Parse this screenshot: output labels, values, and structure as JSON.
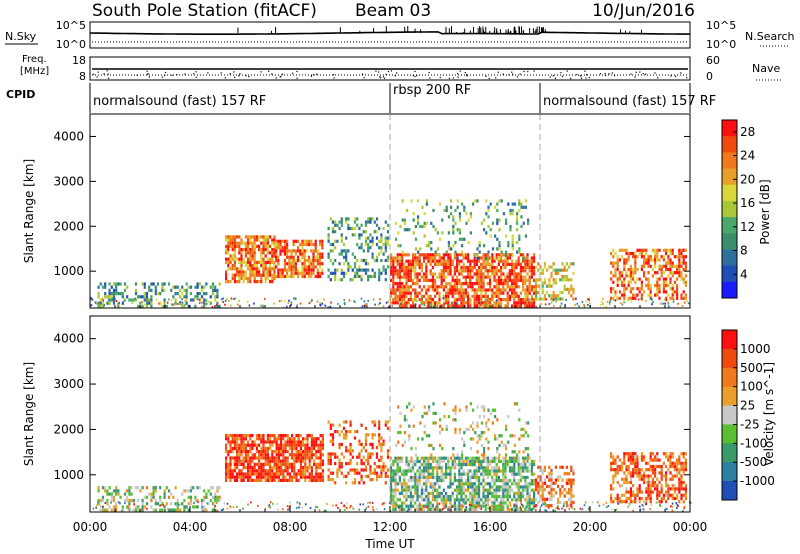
{
  "header": {
    "station": "South Pole Station (fitACF)",
    "beam": "Beam 03",
    "date": "10/Jun/2016"
  },
  "top_panel": {
    "left_label": "N.Sky",
    "right_label": "N.Search",
    "left_ticks": [
      "10^5",
      "10^0"
    ],
    "right_ticks": [
      "10^5",
      "10^0"
    ]
  },
  "freq_panel": {
    "left_label_top": "Freq.",
    "left_label_bottom": "[MHz]",
    "right_label": "Nave",
    "left_ticks": [
      "18",
      "8"
    ],
    "right_ticks": [
      "60",
      "0"
    ]
  },
  "cpid": {
    "label": "CPID",
    "segments": [
      {
        "name": "normalsound (fast) 157 RF",
        "start_hour": 0,
        "end_hour": 12
      },
      {
        "name": "rbsp 200 RF",
        "start_hour": 12,
        "end_hour": 18
      },
      {
        "name": "normalsound (fast) 157 RF",
        "start_hour": 18,
        "end_hour": 24
      }
    ]
  },
  "chart_data": [
    {
      "type": "heatmap",
      "panel": "power",
      "ylabel": "Slant Range [km]",
      "xlim": [
        0,
        24
      ],
      "ylim": [
        180,
        4500
      ],
      "yticks": [
        "1000",
        "2000",
        "3000",
        "4000"
      ],
      "colorbar_label": "Power [dB]",
      "colorbar_ticks": [
        "4",
        "8",
        "12",
        "16",
        "20",
        "24",
        "28"
      ],
      "colorbar_range": [
        0,
        30
      ],
      "palette": [
        "#1a1aff",
        "#1f4fb4",
        "#2f6fa0",
        "#3a8f6a",
        "#4aa86a",
        "#a8c83a",
        "#d8d83a",
        "#e8a02a",
        "#f07a1a",
        "#f04a10",
        "#ff1010"
      ],
      "reference_lines_hours": [
        12,
        18
      ],
      "echo_regions": [
        {
          "t0": 0.3,
          "t1": 5.2,
          "r0": 250,
          "r1": 750,
          "level": 0.35,
          "density": 0.38
        },
        {
          "t0": 5.4,
          "t1": 7.4,
          "r0": 750,
          "r1": 1800,
          "level": 0.78,
          "density": 0.75
        },
        {
          "t0": 7.4,
          "t1": 9.3,
          "r0": 900,
          "r1": 1700,
          "level": 0.82,
          "density": 0.7
        },
        {
          "t0": 9.5,
          "t1": 11.9,
          "r0": 800,
          "r1": 2200,
          "level": 0.35,
          "density": 0.35
        },
        {
          "t0": 12.0,
          "t1": 17.8,
          "r0": 250,
          "r1": 1400,
          "level": 0.85,
          "density": 0.7
        },
        {
          "t0": 12.2,
          "t1": 17.5,
          "r0": 1300,
          "r1": 2600,
          "level": 0.4,
          "density": 0.18
        },
        {
          "t0": 17.8,
          "t1": 19.3,
          "r0": 350,
          "r1": 1200,
          "level": 0.6,
          "density": 0.45
        },
        {
          "t0": 20.8,
          "t1": 23.8,
          "r0": 400,
          "r1": 1500,
          "level": 0.8,
          "density": 0.55
        }
      ]
    },
    {
      "type": "heatmap",
      "panel": "velocity",
      "ylabel": "Slant Range [km]",
      "xlabel": "Time UT",
      "xlim": [
        0,
        24
      ],
      "ylim": [
        180,
        4500
      ],
      "xticks": [
        "00:00",
        "04:00",
        "08:00",
        "12:00",
        "16:00",
        "20:00",
        "00:00"
      ],
      "yticks": [
        "1000",
        "2000",
        "3000",
        "4000"
      ],
      "colorbar_label": "Velocity [m s^-1]",
      "colorbar_ticks": [
        "1000",
        "500",
        "100",
        "25",
        "-25",
        "-100",
        "-500",
        "-1000"
      ],
      "colorbar_range": [
        -1200,
        1200
      ],
      "palette": [
        "#ff1010",
        "#f04a10",
        "#f07a1a",
        "#e8a02a",
        "#c8c8c8",
        "#58c030",
        "#3a9a6a",
        "#2f7fa0",
        "#1f4fb4"
      ],
      "reference_lines_hours": [
        12,
        18
      ],
      "echo_regions": [
        {
          "t0": 0.3,
          "t1": 5.2,
          "r0": 250,
          "r1": 750,
          "level": 0.55,
          "density": 0.35
        },
        {
          "t0": 5.4,
          "t1": 9.3,
          "r0": 900,
          "r1": 1900,
          "level": 0.15,
          "density": 0.8
        },
        {
          "t0": 9.5,
          "t1": 11.9,
          "r0": 800,
          "r1": 2200,
          "level": 0.2,
          "density": 0.35
        },
        {
          "t0": 12.0,
          "t1": 17.8,
          "r0": 250,
          "r1": 1400,
          "level": 0.62,
          "density": 0.7
        },
        {
          "t0": 12.2,
          "t1": 17.5,
          "r0": 1300,
          "r1": 2600,
          "level": 0.5,
          "density": 0.15
        },
        {
          "t0": 17.8,
          "t1": 19.3,
          "r0": 350,
          "r1": 1200,
          "level": 0.3,
          "density": 0.45
        },
        {
          "t0": 20.8,
          "t1": 23.8,
          "r0": 400,
          "r1": 1500,
          "level": 0.25,
          "density": 0.55
        }
      ]
    }
  ]
}
